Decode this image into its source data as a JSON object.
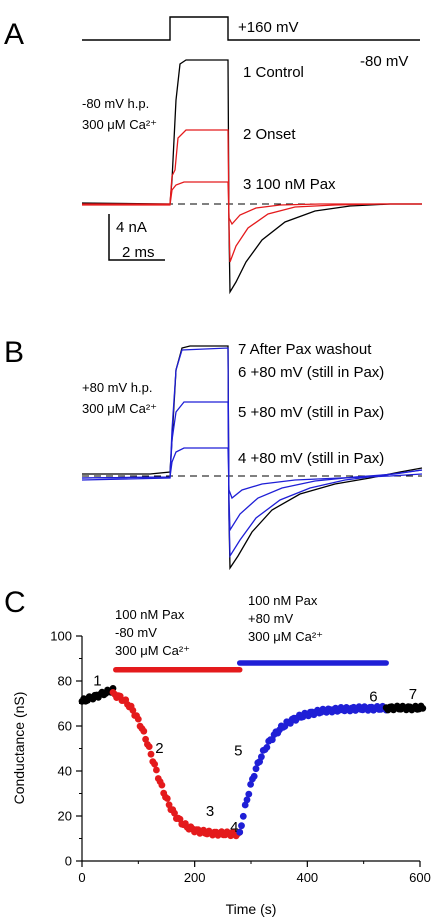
{
  "panels": {
    "A": {
      "letter": "A",
      "step_label": "+160 mV",
      "hold_label": "-80 mV",
      "cond1": "-80 mV h.p.",
      "cond2": "300 μM Ca²⁺",
      "traces": [
        "1 Control",
        "2 Onset",
        "3 100 nM Pax"
      ],
      "scale_y": "4 nA",
      "scale_x": "2 ms"
    },
    "B": {
      "letter": "B",
      "cond1": "+80 mV h.p.",
      "cond2": "300 μM Ca²⁺",
      "traces": [
        "7 After Pax washout",
        "6 +80 mV (still in Pax)",
        "5 +80 mV (still in Pax)",
        "4 +80 mV (still in Pax)"
      ]
    },
    "C": {
      "letter": "C",
      "bar1": [
        "100 nM Pax",
        "-80 mV",
        "300 μM Ca²⁺"
      ],
      "bar2": [
        "100 nM Pax",
        "+80 mV",
        "300 μM Ca²⁺"
      ],
      "point_labels": [
        "1",
        "2",
        "3",
        "4",
        "5",
        "6",
        "7"
      ]
    }
  },
  "colors": {
    "black": "#000000",
    "red": "#e41a1c",
    "blue": "#1f1fd6"
  },
  "chart_data": {
    "type": "scatter",
    "xlabel": "Time (s)",
    "ylabel": "Conductance (nS)",
    "xlim": [
      0,
      600
    ],
    "ylim": [
      0,
      100
    ],
    "xticks": [
      0,
      200,
      400,
      600
    ],
    "yticks": [
      0,
      20,
      40,
      60,
      80,
      100
    ],
    "series": [
      {
        "color": "black",
        "time_range": [
          0,
          55
        ],
        "y_start": 71,
        "y_end": 76
      },
      {
        "color": "red",
        "time_range": [
          55,
          280
        ],
        "y_start": 76,
        "y_end": 12
      },
      {
        "color": "blue",
        "time_range": [
          280,
          540
        ],
        "y_start": 12,
        "y_end": 68
      },
      {
        "color": "black",
        "time_range": [
          540,
          605
        ],
        "y_start": 68,
        "y_end": 68
      }
    ],
    "drug_bars": [
      {
        "color": "red",
        "x": [
          60,
          280
        ],
        "y": 85
      },
      {
        "color": "blue",
        "x": [
          280,
          540
        ],
        "y": 88
      }
    ],
    "annotations": [
      {
        "text": "1",
        "x": 20,
        "y": 78
      },
      {
        "text": "2",
        "x": 130,
        "y": 48
      },
      {
        "text": "3",
        "x": 220,
        "y": 20
      },
      {
        "text": "4",
        "x": 263,
        "y": 13
      },
      {
        "text": "5",
        "x": 270,
        "y": 47
      },
      {
        "text": "6",
        "x": 510,
        "y": 71
      },
      {
        "text": "7",
        "x": 580,
        "y": 72
      }
    ]
  }
}
